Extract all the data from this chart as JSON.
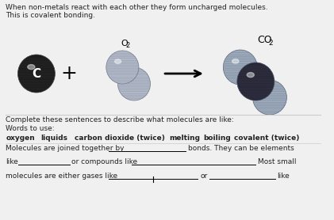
{
  "line1": "When non-metals react with each other they form uncharged molecules.",
  "line2": "This is covalent bonding.",
  "complete_text": "Complete these sentences to describe what molecules are like:",
  "words_label": "Words to use:",
  "words_list": [
    [
      "oxygen",
      8
    ],
    [
      "liquids",
      52
    ],
    [
      "carbon dioxide (twice)",
      96
    ],
    [
      "melting",
      218
    ],
    [
      "boiling",
      262
    ],
    [
      "covalent (twice)",
      302
    ]
  ],
  "sentence1_pre": "Molecules are joined together by",
  "sentence1_post": "bonds. They can be elements",
  "sentence2_pre": "like",
  "sentence2_mid": "or compounds like",
  "sentence2_post": "Most small",
  "sentence3_pre": "molecules are either gases like",
  "sentence3_or": "or",
  "sentence3_post": "like",
  "bg_color": "#f0f0f0",
  "text_color": "#222222",
  "carbon_fill": "#1a1a1a",
  "o2_fill": "#b0b8c8",
  "o2_dark": "#707888",
  "co2_c_fill": "#2a2a3a",
  "co2_o_fill": "#a0aabb",
  "co2_o_dark": "#606878",
  "line_color": "#cccccc"
}
